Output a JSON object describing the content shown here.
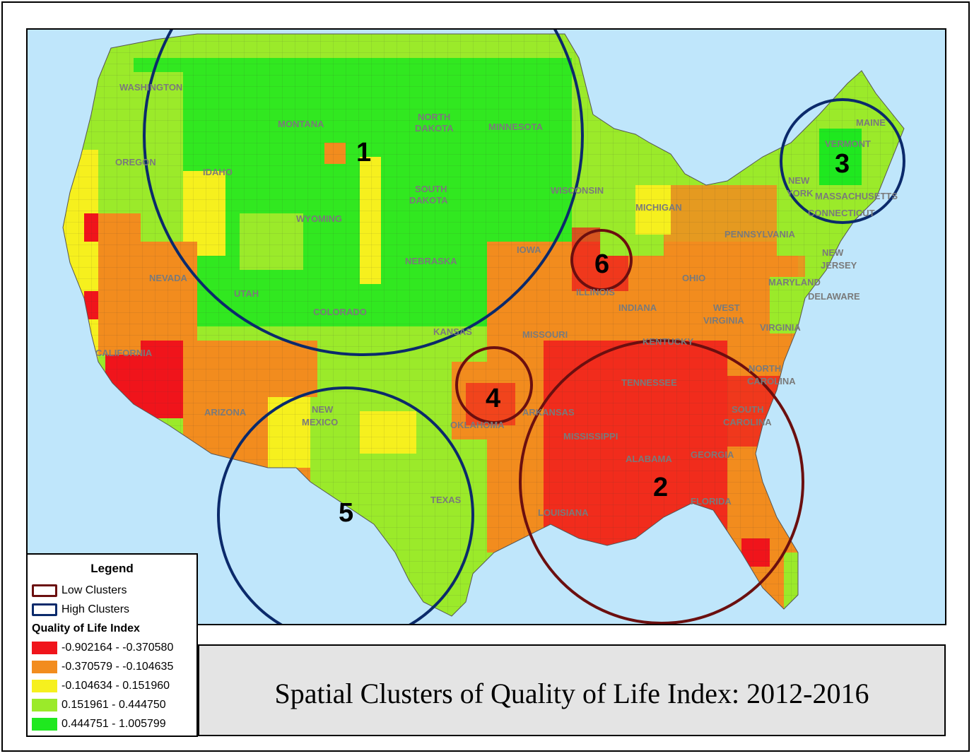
{
  "title": "Spatial Clusters of Quality of Life Index: 2012-2016",
  "colors": {
    "ocean": "#bfe6fb",
    "class1": "#f0141b",
    "class2": "#f28c1e",
    "class3": "#f6f01e",
    "class4": "#9bea2a",
    "class5": "#1fe81f",
    "low_cluster_ring": "#6b0f0f",
    "high_cluster_ring": "#0b2a6b",
    "state_label": "#7a7a7a"
  },
  "legend": {
    "title": "Legend",
    "low_clusters": "Low Clusters",
    "high_clusters": "High Clusters",
    "index_title": "Quality of Life Index",
    "classes": [
      {
        "label": "-0.902164 - -0.370580",
        "color": "#f0141b"
      },
      {
        "label": "-0.370579 - -0.104635",
        "color": "#f28c1e"
      },
      {
        "label": "-0.104634 - 0.151960",
        "color": "#f6f01e"
      },
      {
        "label": "0.151961 - 0.444750",
        "color": "#9bea2a"
      },
      {
        "label": "0.444751 - 1.005799",
        "color": "#1fe81f"
      }
    ]
  },
  "clusters": [
    {
      "id": "1",
      "type": "high"
    },
    {
      "id": "2",
      "type": "low"
    },
    {
      "id": "3",
      "type": "high"
    },
    {
      "id": "4",
      "type": "low"
    },
    {
      "id": "5",
      "type": "high"
    },
    {
      "id": "6",
      "type": "low"
    }
  ],
  "state_labels": {
    "washington": "WASHINGTON",
    "oregon": "OREGON",
    "idaho": "IDAHO",
    "montana": "MONTANA",
    "north_dakota_1": "NORTH",
    "north_dakota_2": "DAKOTA",
    "minnesota": "MINNESOTA",
    "south_dakota_1": "SOUTH",
    "south_dakota_2": "DAKOTA",
    "wisconsin": "WISCONSIN",
    "wyoming": "WYOMING",
    "nebraska": "NEBRASKA",
    "iowa": "IOWA",
    "michigan": "MICHIGAN",
    "nevada": "NEVADA",
    "utah": "UTAH",
    "colorado": "COLORADO",
    "kansas": "KANSAS",
    "missouri": "MISSOURI",
    "illinois": "ILLINOIS",
    "indiana": "INDIANA",
    "ohio": "OHIO",
    "california": "CALIFORNIA",
    "arizona": "ARIZONA",
    "new_mexico_1": "NEW",
    "new_mexico_2": "MEXICO",
    "oklahoma": "OKLAHOMA",
    "arkansas": "ARKANSAS",
    "texas": "TEXAS",
    "louisiana": "LOUISIANA",
    "mississippi": "MISSISSIPPI",
    "alabama": "ALABAMA",
    "georgia": "GEORGIA",
    "florida": "FLORIDA",
    "tennessee": "TENNESSEE",
    "kentucky": "KENTUCKY",
    "west_virginia_1": "WEST",
    "west_virginia_2": "VIRGINIA",
    "virginia": "VIRGINIA",
    "north_carolina_1": "NORTH",
    "north_carolina_2": "CAROLINA",
    "south_carolina_1": "SOUTH",
    "south_carolina_2": "CAROLINA",
    "pennsylvania": "PENNSYLVANIA",
    "new_york_1": "NEW",
    "new_york_2": "YORK",
    "new_jersey_1": "NEW",
    "new_jersey_2": "JERSEY",
    "maryland": "MARYLAND",
    "delaware": "DELAWARE",
    "vermont": "VERMONT",
    "maine": "MAINE",
    "massachusetts": "MASSACHUSETTS",
    "connecticut": "CONNECTICUT"
  }
}
